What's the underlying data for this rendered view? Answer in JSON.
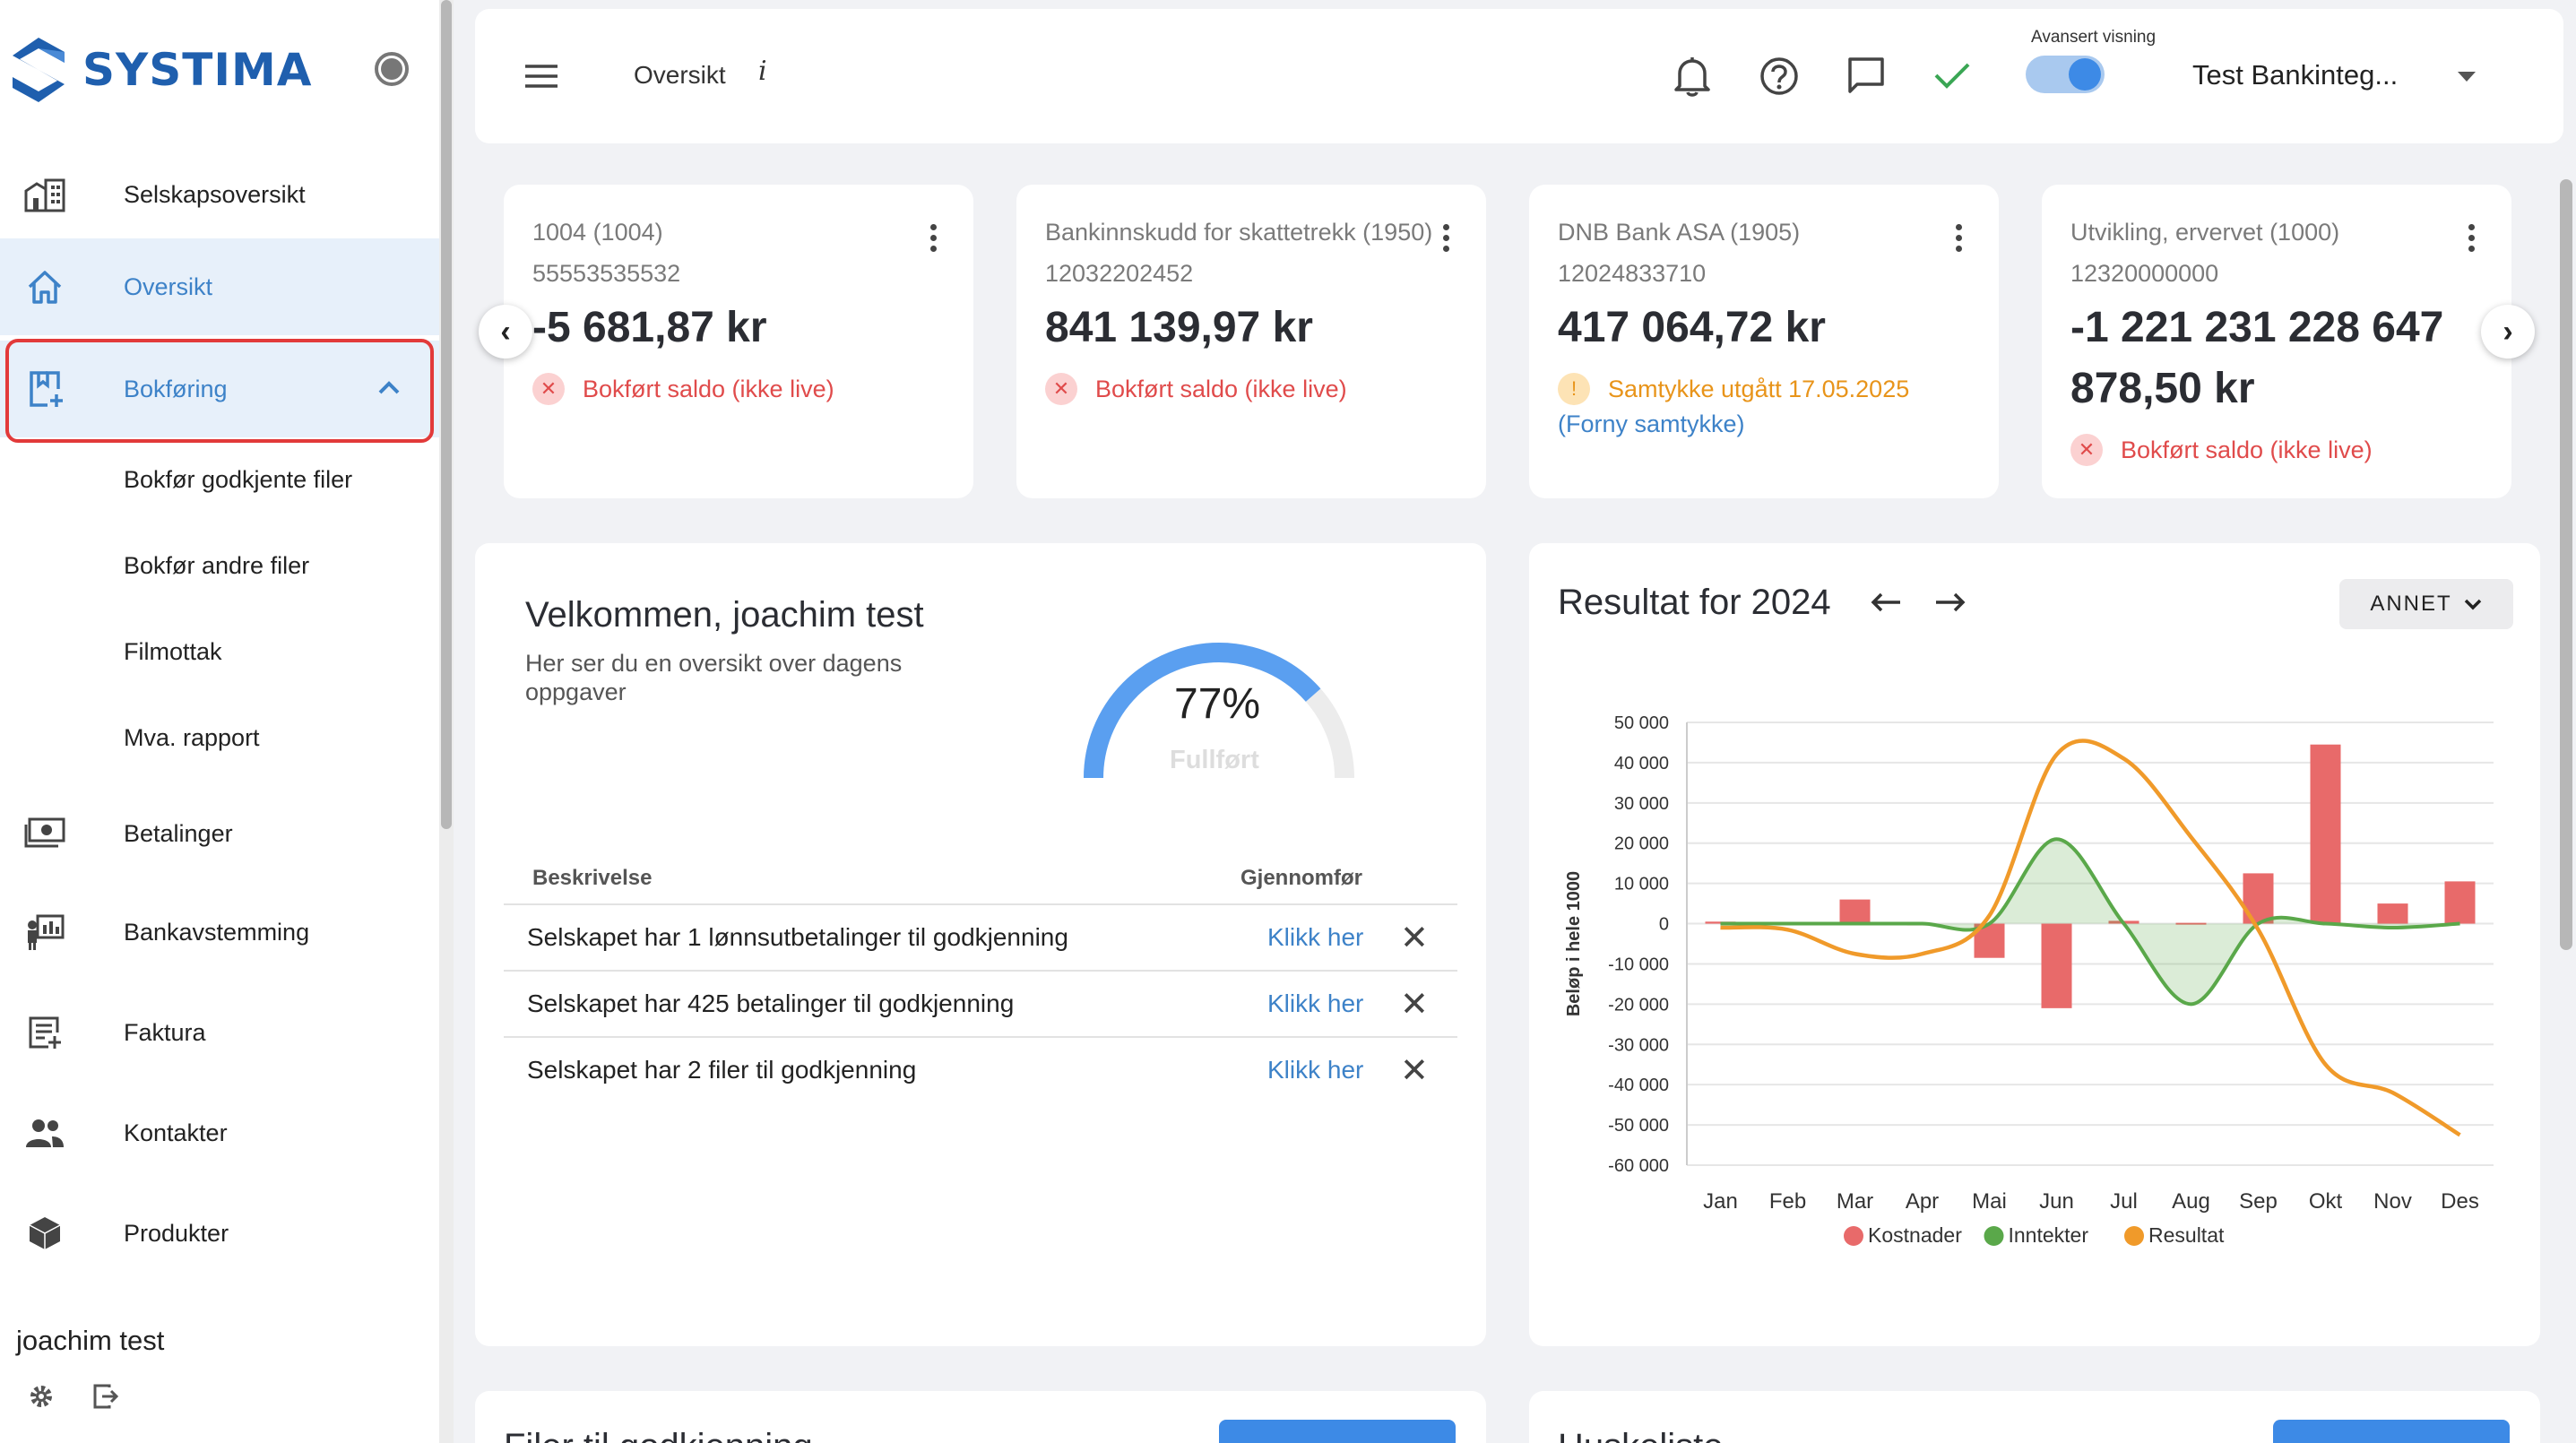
{
  "sidebar": {
    "brand": "SYSTIMA",
    "nav": [
      {
        "label": "Selskapsoversikt",
        "icon": "company-overview-icon"
      },
      {
        "label": "Oversikt",
        "icon": "home-icon"
      },
      {
        "label": "Bokføring",
        "icon": "bookkeeping-icon"
      },
      {
        "label": "Betalinger",
        "icon": "payments-icon"
      },
      {
        "label": "Bankavstemming",
        "icon": "bank-reconciliation-icon"
      },
      {
        "label": "Faktura",
        "icon": "invoice-icon"
      },
      {
        "label": "Kontakter",
        "icon": "contacts-icon"
      },
      {
        "label": "Produkter",
        "icon": "products-icon"
      }
    ],
    "bokforing_sub": [
      "Bokfør godkjente filer",
      "Bokfør andre filer",
      "Filmottak",
      "Mva. rapport"
    ],
    "user_name": "joachim test",
    "active_color": "#3d82c8",
    "highlight_color": "#e23a3a"
  },
  "topbar": {
    "title": "Oversikt",
    "info": "i",
    "toggle_label": "Avansert visning",
    "toggle_on": true,
    "company": "Test Bankinteg..."
  },
  "accounts": [
    {
      "name": "1004 (1004)",
      "number": "55553535532",
      "amount": "-5 681,87 kr",
      "status": "Bokført saldo (ikke live)",
      "status_type": "error"
    },
    {
      "name": "Bankinnskudd for skattetrekk (1950)",
      "number": "12032202452",
      "amount": "841 139,97 kr",
      "status": "Bokført saldo (ikke live)",
      "status_type": "error"
    },
    {
      "name": "DNB Bank ASA (1905)",
      "number": "12024833710",
      "amount": "417 064,72 kr",
      "status": "Samtykke utgått 17.05.2025",
      "status_type": "warning",
      "link": "(Forny samtykke)"
    },
    {
      "name": "Utvikling, ervervet (1000)",
      "number": "12320000000",
      "amount": "-1 221 231 228 647 878,50 kr",
      "status": "Bokført saldo (ikke live)",
      "status_type": "error"
    }
  ],
  "welcome": {
    "title": "Velkommen, joachim test",
    "subtitle": "Her ser du en oversikt over dagens oppgaver",
    "progress_percent": 77,
    "progress_label": "77%",
    "progress_caption": "Fullført",
    "col_desc": "Beskrivelse",
    "col_action": "Gjennomfør",
    "tasks": [
      {
        "desc": "Selskapet har 1 lønnsutbetalinger til godkjenning",
        "action": "Klikk her"
      },
      {
        "desc": "Selskapet har 425 betalinger til godkjenning",
        "action": "Klikk her"
      },
      {
        "desc": "Selskapet har 2 filer til godkjenning",
        "action": "Klikk her"
      }
    ]
  },
  "result": {
    "title": "Resultat for 2024",
    "filter": "ANNET"
  },
  "chart_data": {
    "type": "bar",
    "title": "Resultat for 2024",
    "ylabel": "Beløp i hele 1000",
    "ylim": [
      -60000,
      50000
    ],
    "yticks": [
      50000,
      40000,
      30000,
      20000,
      10000,
      0,
      -10000,
      -20000,
      -30000,
      -40000,
      -50000,
      -60000
    ],
    "ytick_labels": [
      "50 000",
      "40 000",
      "30 000",
      "20 000",
      "10 000",
      "0",
      "-10 000",
      "-20 000",
      "-30 000",
      "-40 000",
      "-50 000",
      "-60 000"
    ],
    "categories": [
      "Jan",
      "Feb",
      "Mar",
      "Apr",
      "Mai",
      "Jun",
      "Jul",
      "Aug",
      "Sep",
      "Okt",
      "Nov",
      "Des"
    ],
    "series": [
      {
        "name": "Kostnader",
        "kind": "bar",
        "color": "#e86a6a",
        "values": [
          500,
          300,
          6000,
          0,
          -8500,
          -21000,
          700,
          200,
          12500,
          44500,
          5000,
          10500
        ]
      },
      {
        "name": "Inntekter",
        "kind": "area",
        "color": "#5aa84a",
        "values": [
          0,
          0,
          0,
          0,
          0,
          21000,
          0,
          -20000,
          0,
          0,
          -1000,
          0
        ]
      },
      {
        "name": "Resultat",
        "kind": "line",
        "color": "#f09a2a",
        "values": [
          -1000,
          -1500,
          -7500,
          -7500,
          2000,
          42000,
          41000,
          21500,
          -1500,
          -35000,
          -42000,
          -52500
        ]
      }
    ],
    "legend_position": "bottom",
    "grid": true
  },
  "bottom": {
    "files_title": "Filer til godkjenning",
    "todo_title": "Huskeliste"
  }
}
